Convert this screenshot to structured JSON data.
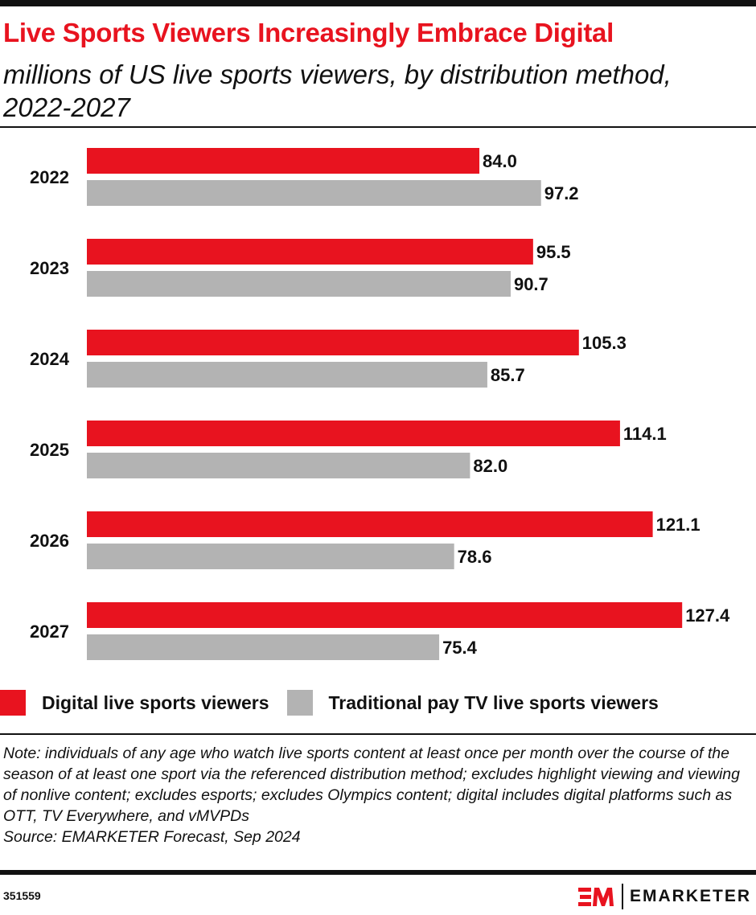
{
  "chart_data": {
    "type": "bar",
    "orientation": "horizontal",
    "title": "Live Sports Viewers Increasingly Embrace Digital",
    "subtitle": "millions of US live sports viewers, by distribution method, 2022-2027",
    "categories": [
      "2022",
      "2023",
      "2024",
      "2025",
      "2026",
      "2027"
    ],
    "series": [
      {
        "name": "Digital live sports viewers",
        "color": "#e8131f",
        "values": [
          84.0,
          95.5,
          105.3,
          114.1,
          121.1,
          127.4
        ]
      },
      {
        "name": "Traditional pay TV live sports viewers",
        "color": "#b3b3b3",
        "values": [
          97.2,
          90.7,
          85.7,
          82.0,
          78.6,
          75.4
        ]
      }
    ],
    "xlim": [
      0,
      140
    ],
    "grid": false,
    "legend": "bottom"
  },
  "note": "Note: individuals of any age who watch live sports content at least once per month over the course of the season of at least one sport via the referenced distribution method; excludes highlight viewing and viewing of nonlive content; excludes esports; excludes Olympics content; digital includes digital platforms such as OTT, TV Everywhere, and vMVPDs",
  "source": "Source: EMARKETER Forecast, Sep 2024",
  "chart_id": "351559",
  "brand": "EMARKETER",
  "logo_mark": "EM"
}
